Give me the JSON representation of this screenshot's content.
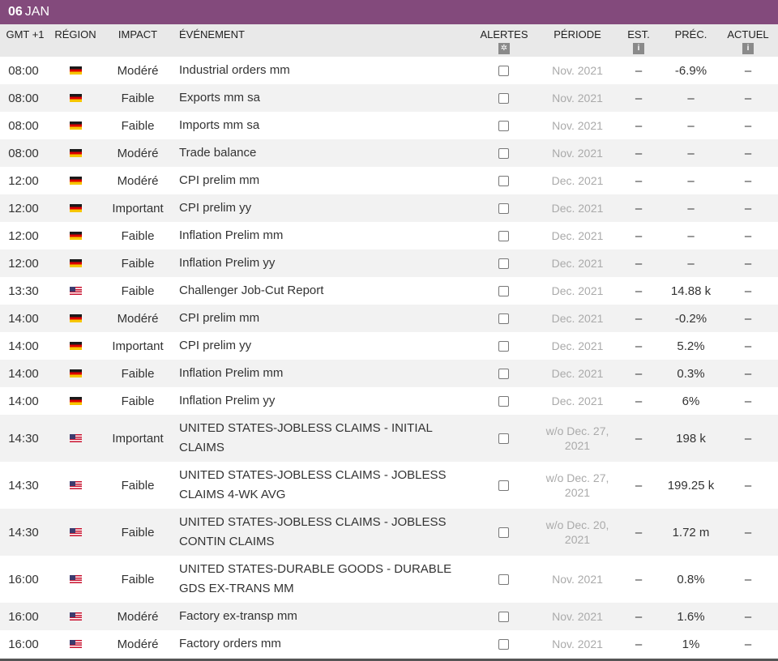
{
  "date": {
    "day": "06",
    "month": "JAN"
  },
  "columns": {
    "time": "GMT +1",
    "region": "RÉGION",
    "impact": "IMPACT",
    "event": "ÉVÉNEMENT",
    "alerts": "ALERTES",
    "period": "PÉRIODE",
    "est": "EST.",
    "prec": "PRÉC.",
    "actual": "ACTUEL"
  },
  "rows": [
    {
      "time": "08:00",
      "region": "germany-flag-icon",
      "impact": "Modéré",
      "event": "Industrial orders mm",
      "period": "Nov. 2021",
      "est": "–",
      "prec": "-6.9%",
      "actual": "–"
    },
    {
      "time": "08:00",
      "region": "germany-flag-icon",
      "impact": "Faible",
      "event": "Exports mm sa",
      "period": "Nov. 2021",
      "est": "–",
      "prec": "–",
      "actual": "–"
    },
    {
      "time": "08:00",
      "region": "germany-flag-icon",
      "impact": "Faible",
      "event": "Imports mm sa",
      "period": "Nov. 2021",
      "est": "–",
      "prec": "–",
      "actual": "–"
    },
    {
      "time": "08:00",
      "region": "germany-flag-icon",
      "impact": "Modéré",
      "event": "Trade balance",
      "period": "Nov. 2021",
      "est": "–",
      "prec": "–",
      "actual": "–"
    },
    {
      "time": "12:00",
      "region": "germany-flag-icon",
      "impact": "Modéré",
      "event": "CPI prelim mm",
      "period": "Dec. 2021",
      "est": "–",
      "prec": "–",
      "actual": "–"
    },
    {
      "time": "12:00",
      "region": "germany-flag-icon",
      "impact": "Important",
      "event": "CPI prelim yy",
      "period": "Dec. 2021",
      "est": "–",
      "prec": "–",
      "actual": "–"
    },
    {
      "time": "12:00",
      "region": "germany-flag-icon",
      "impact": "Faible",
      "event": "Inflation Prelim mm",
      "period": "Dec. 2021",
      "est": "–",
      "prec": "–",
      "actual": "–"
    },
    {
      "time": "12:00",
      "region": "germany-flag-icon",
      "impact": "Faible",
      "event": "Inflation Prelim yy",
      "period": "Dec. 2021",
      "est": "–",
      "prec": "–",
      "actual": "–"
    },
    {
      "time": "13:30",
      "region": "us-flag-icon",
      "impact": "Faible",
      "event": "Challenger Job-Cut Report",
      "period": "Dec. 2021",
      "est": "–",
      "prec": "14.88 k",
      "actual": "–"
    },
    {
      "time": "14:00",
      "region": "germany-flag-icon",
      "impact": "Modéré",
      "event": "CPI prelim mm",
      "period": "Dec. 2021",
      "est": "–",
      "prec": "-0.2%",
      "actual": "–"
    },
    {
      "time": "14:00",
      "region": "germany-flag-icon",
      "impact": "Important",
      "event": "CPI prelim yy",
      "period": "Dec. 2021",
      "est": "–",
      "prec": "5.2%",
      "actual": "–"
    },
    {
      "time": "14:00",
      "region": "germany-flag-icon",
      "impact": "Faible",
      "event": "Inflation Prelim mm",
      "period": "Dec. 2021",
      "est": "–",
      "prec": "0.3%",
      "actual": "–"
    },
    {
      "time": "14:00",
      "region": "germany-flag-icon",
      "impact": "Faible",
      "event": "Inflation Prelim yy",
      "period": "Dec. 2021",
      "est": "–",
      "prec": "6%",
      "actual": "–"
    },
    {
      "time": "14:30",
      "region": "us-flag-icon",
      "impact": "Important",
      "event": "UNITED STATES-JOBLESS CLAIMS - INITIAL CLAIMS",
      "period": "w/o Dec. 27, 2021",
      "est": "–",
      "prec": "198 k",
      "actual": "–"
    },
    {
      "time": "14:30",
      "region": "us-flag-icon",
      "impact": "Faible",
      "event": "UNITED STATES-JOBLESS CLAIMS - JOBLESS CLAIMS 4-WK AVG",
      "period": "w/o Dec. 27, 2021",
      "est": "–",
      "prec": "199.25 k",
      "actual": "–"
    },
    {
      "time": "14:30",
      "region": "us-flag-icon",
      "impact": "Faible",
      "event": "UNITED STATES-JOBLESS CLAIMS - JOBLESS CONTIN CLAIMS",
      "period": "w/o Dec. 20, 2021",
      "est": "–",
      "prec": "1.72 m",
      "actual": "–"
    },
    {
      "time": "16:00",
      "region": "us-flag-icon",
      "impact": "Faible",
      "event": "UNITED STATES-DURABLE GOODS - DURABLE GDS EX-TRANS MM",
      "period": "Nov. 2021",
      "est": "–",
      "prec": "0.8%",
      "actual": "–"
    },
    {
      "time": "16:00",
      "region": "us-flag-icon",
      "impact": "Modéré",
      "event": "Factory ex-transp mm",
      "period": "Nov. 2021",
      "est": "–",
      "prec": "1.6%",
      "actual": "–"
    },
    {
      "time": "16:00",
      "region": "us-flag-icon",
      "impact": "Modéré",
      "event": "Factory orders mm",
      "period": "Nov. 2021",
      "est": "–",
      "prec": "1%",
      "actual": "–"
    }
  ]
}
